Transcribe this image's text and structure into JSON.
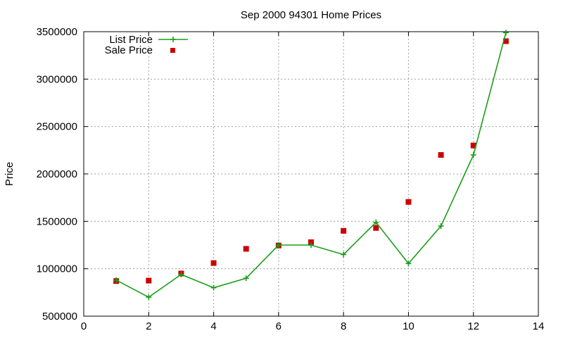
{
  "chart_data": {
    "type": "line",
    "title": "Sep 2000 94301 Home Prices",
    "xlabel": "",
    "ylabel": "Price",
    "xlim": [
      0,
      14
    ],
    "ylim": [
      500000,
      3500000
    ],
    "x_ticks": [
      0,
      2,
      4,
      6,
      8,
      10,
      12,
      14
    ],
    "y_ticks": [
      500000,
      1000000,
      1500000,
      2000000,
      2500000,
      3000000,
      3500000
    ],
    "x_tick_labels": [
      "0",
      "2",
      "4",
      "6",
      "8",
      "10",
      "12",
      "14"
    ],
    "y_tick_labels": [
      "500000",
      "1000000",
      "1500000",
      "2000000",
      "2500000",
      "3000000",
      "3500000"
    ],
    "grid": true,
    "legend_position": "top-left",
    "series": [
      {
        "name": "List Price",
        "style": "line-with-plus-markers",
        "color": "#1a9e1a",
        "x": [
          1,
          2,
          3,
          4,
          5,
          6,
          7,
          8,
          9,
          10,
          11,
          12,
          13
        ],
        "y": [
          880000,
          700000,
          940000,
          800000,
          900000,
          1250000,
          1250000,
          1150000,
          1490000,
          1055000,
          1450000,
          2200000,
          3490000
        ]
      },
      {
        "name": "Sale Price",
        "style": "square-markers",
        "color": "#cc0000",
        "x": [
          1,
          2,
          3,
          4,
          5,
          6,
          7,
          8,
          9,
          10,
          11,
          12,
          13
        ],
        "y": [
          870000,
          875000,
          950000,
          1060000,
          1210000,
          1245000,
          1280000,
          1400000,
          1430000,
          1705000,
          2200000,
          2300000,
          3400000
        ]
      }
    ]
  }
}
